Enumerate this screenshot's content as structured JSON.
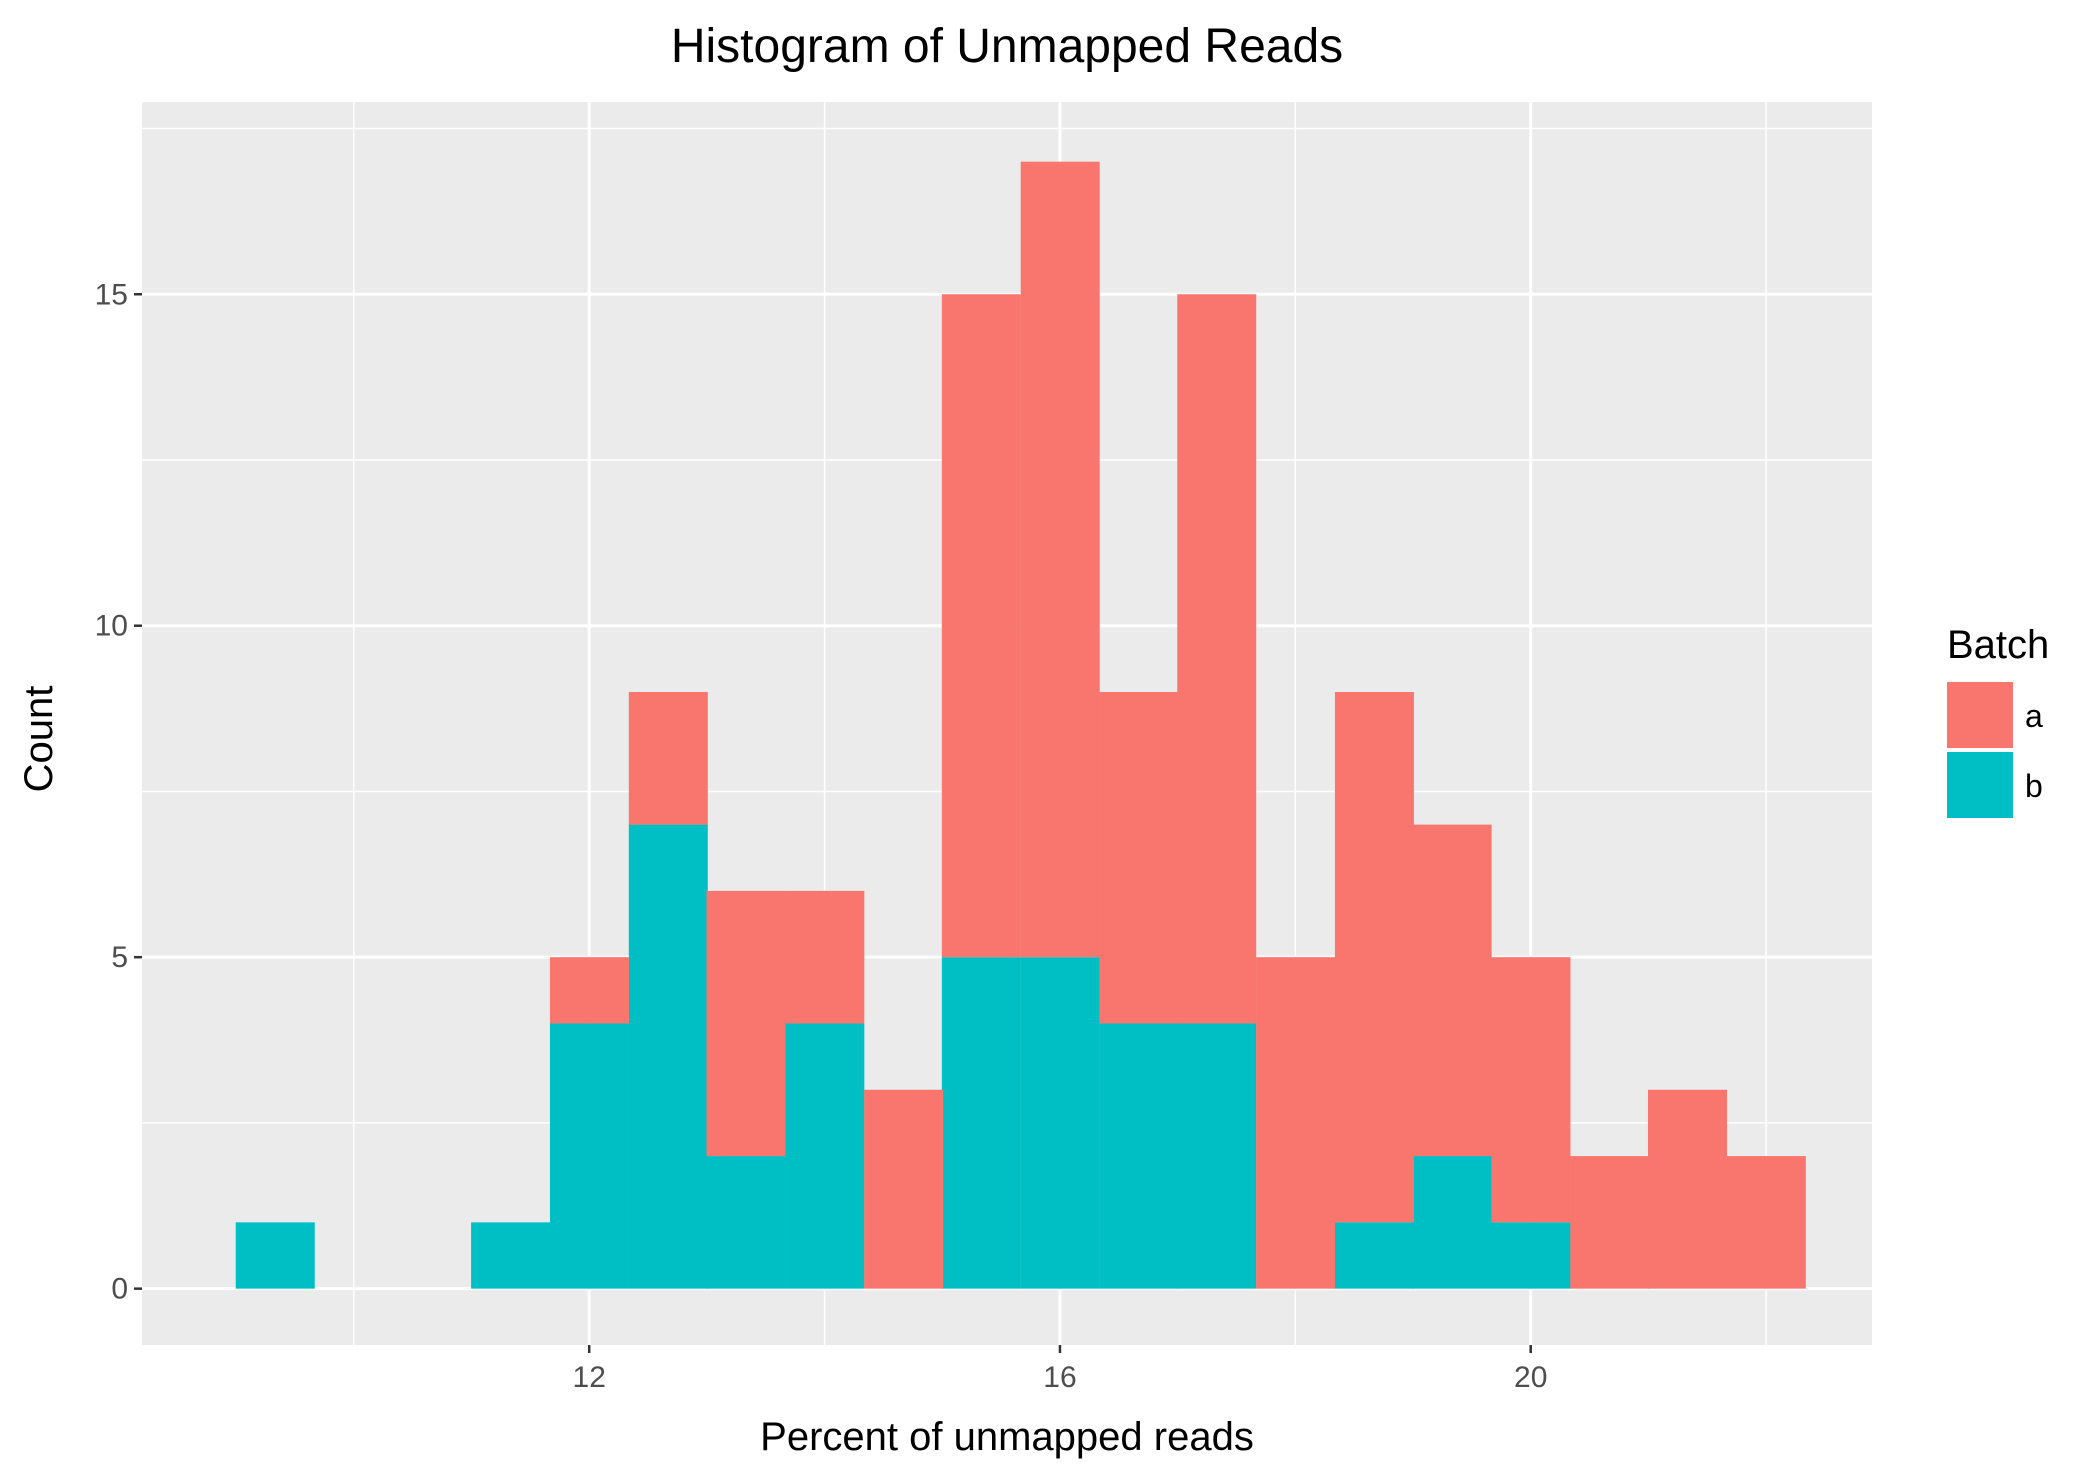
{
  "chart_data": {
    "type": "bar",
    "stacked": true,
    "title": "Histogram of Unmapped Reads",
    "xlabel": "Percent of unmapped reads",
    "ylabel": "Count",
    "xlim": [
      8.2,
      22.9
    ],
    "ylim": [
      -0.85,
      17.9
    ],
    "x_ticks": [
      12,
      16,
      20
    ],
    "y_ticks": [
      0,
      5,
      10,
      15
    ],
    "grid": true,
    "bin_width": 0.667,
    "bin_centers": [
      9.33,
      10.0,
      10.67,
      11.33,
      12.0,
      12.67,
      13.33,
      14.0,
      14.67,
      15.33,
      16.0,
      16.67,
      17.33,
      18.0,
      18.67,
      19.33,
      20.0,
      20.67,
      21.33,
      22.0
    ],
    "series": [
      {
        "name": "b",
        "color": "#00BFC4",
        "values": [
          1,
          0,
          0,
          1,
          4,
          7,
          2,
          4,
          0,
          5,
          5,
          4,
          4,
          0,
          1,
          2,
          1,
          0,
          0,
          0
        ]
      },
      {
        "name": "a",
        "color": "#F8766D",
        "values": [
          0,
          0,
          0,
          0,
          1,
          2,
          4,
          2,
          3,
          10,
          12,
          5,
          11,
          5,
          8,
          5,
          4,
          2,
          3,
          2
        ]
      }
    ],
    "legend": {
      "title": "Batch",
      "position": "right",
      "entries": [
        {
          "label": "a",
          "color": "#F8766D"
        },
        {
          "label": "b",
          "color": "#00BFC4"
        }
      ]
    },
    "panel_background": "#EBEBEB",
    "grid_color": "#FFFFFF"
  }
}
